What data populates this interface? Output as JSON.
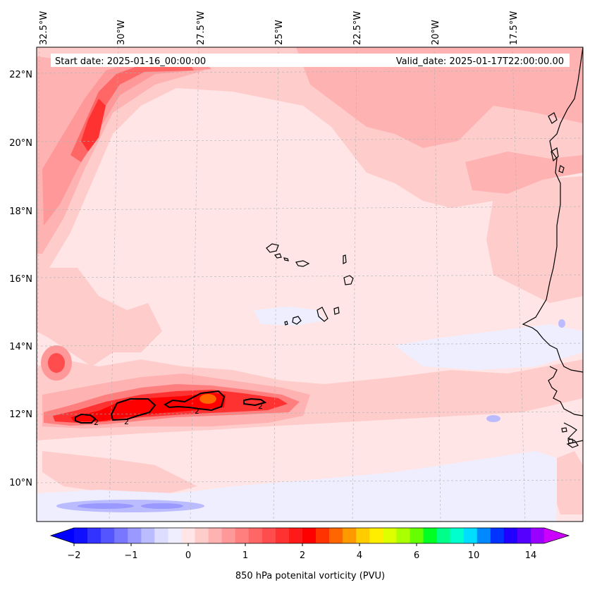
{
  "map": {
    "start_date": "Start date: 2025-01-16_00:00:00",
    "valid_date": "Valid_date: 2025-01-17T22:00:00.00",
    "lon_labels": [
      "32.5°W",
      "30°W",
      "27.5°W",
      "25°W",
      "22.5°W",
      "20°W",
      "17.5°W"
    ],
    "lat_labels": [
      "22°N",
      "20°N",
      "18°N",
      "16°N",
      "14°N",
      "12°N",
      "10°N"
    ],
    "contour_label": "2",
    "field": "850 hPa potential vorticity",
    "lon_range": [
      -33.0,
      -15.5
    ],
    "lat_range": [
      8.9,
      22.8
    ]
  },
  "colorbar": {
    "label": "850 hPa potenital vorticity (PVU)",
    "tick_labels": [
      "−2",
      "−1",
      "0",
      "1",
      "2",
      "4",
      "6",
      "10",
      "14"
    ],
    "colors": [
      "#1010ff",
      "#3333ff",
      "#5555ff",
      "#7777ff",
      "#9999ff",
      "#bbbbff",
      "#ddddff",
      "#eeeeff",
      "#ffe5e5",
      "#ffcccc",
      "#ffb2b2",
      "#ff9999",
      "#ff7f7f",
      "#ff6666",
      "#ff4c4c",
      "#ff3232",
      "#ff1a1a",
      "#ff0000",
      "#ff3300",
      "#ff6600",
      "#ff9900",
      "#ffcc00",
      "#ffee00",
      "#ddff00",
      "#aaff00",
      "#66ff00",
      "#00ff22",
      "#00ff88",
      "#00ffcc",
      "#00ddff",
      "#0088ff",
      "#0033ff",
      "#2200ff",
      "#5500ff",
      "#9900ff"
    ],
    "under_color": "#0000ff",
    "over_color": "#cc00ff"
  }
}
